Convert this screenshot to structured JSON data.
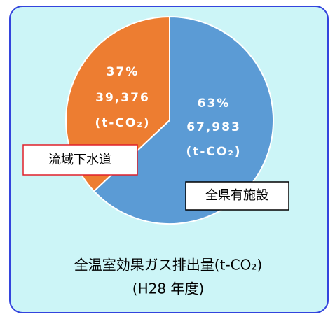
{
  "chart_data": {
    "type": "pie",
    "title": "全温室効果ガス排出量(t-CO₂)",
    "subtitle": "(H28 年度)",
    "categories": [
      "全県有施設",
      "流域下水道"
    ],
    "values": [
      63,
      37
    ],
    "value_labels": [
      "63%",
      "37%"
    ],
    "amounts": [
      67983,
      39376
    ],
    "amount_labels": [
      "67,983",
      "39,376"
    ],
    "unit_label": "(t-CO₂)",
    "colors": [
      "#5b9bd5",
      "#ed7d31"
    ]
  }
}
